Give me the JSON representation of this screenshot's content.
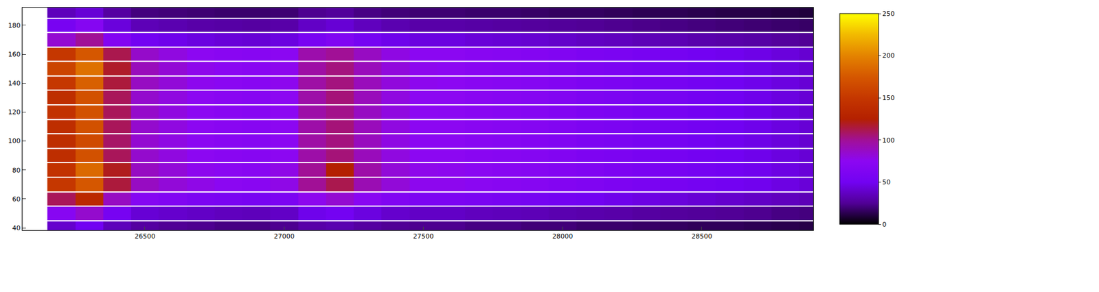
{
  "chart_data": {
    "type": "heatmap",
    "x": [
      26100,
      26200,
      26300,
      26400,
      26500,
      26600,
      26700,
      26800,
      26900,
      27000,
      27100,
      27200,
      27300,
      27400,
      27500,
      27600,
      27700,
      27800,
      27900,
      28000,
      28100,
      28200,
      28300,
      28400,
      28500,
      28600,
      28700,
      28800,
      28900
    ],
    "y": [
      40,
      50,
      60,
      70,
      80,
      90,
      100,
      110,
      120,
      130,
      140,
      150,
      160,
      170,
      180,
      190
    ],
    "cells": [
      [
        null,
        40,
        50,
        35,
        28,
        25,
        24,
        22,
        22,
        24,
        30,
        32,
        28,
        25,
        24,
        24,
        22,
        22,
        20,
        20,
        18,
        18,
        17,
        16,
        15,
        15,
        14,
        13,
        12
      ],
      [
        null,
        70,
        85,
        55,
        42,
        40,
        38,
        36,
        35,
        38,
        48,
        52,
        45,
        40,
        38,
        38,
        36,
        35,
        34,
        32,
        31,
        30,
        28,
        27,
        26,
        25,
        24,
        22,
        21
      ],
      [
        null,
        110,
        135,
        88,
        68,
        64,
        60,
        58,
        56,
        60,
        76,
        84,
        72,
        64,
        60,
        60,
        58,
        56,
        54,
        52,
        50,
        48,
        46,
        44,
        42,
        40,
        38,
        36,
        34
      ],
      [
        null,
        150,
        175,
        115,
        88,
        82,
        78,
        74,
        72,
        78,
        100,
        112,
        92,
        82,
        76,
        76,
        73,
        71,
        69,
        66,
        63,
        61,
        58,
        56,
        53,
        51,
        49,
        46,
        43
      ],
      [
        null,
        145,
        185,
        120,
        88,
        82,
        76,
        73,
        71,
        78,
        100,
        125,
        95,
        82,
        77,
        76,
        73,
        71,
        69,
        66,
        63,
        61,
        58,
        56,
        53,
        51,
        49,
        46,
        43
      ],
      [
        null,
        140,
        170,
        110,
        85,
        80,
        75,
        72,
        70,
        75,
        95,
        105,
        90,
        80,
        75,
        75,
        72,
        70,
        68,
        65,
        62,
        60,
        57,
        55,
        52,
        50,
        48,
        45,
        42
      ],
      [
        null,
        140,
        165,
        108,
        84,
        79,
        74,
        71,
        69,
        74,
        96,
        104,
        89,
        79,
        74,
        74,
        71,
        69,
        67,
        64,
        61,
        59,
        56,
        54,
        51,
        49,
        47,
        44,
        41
      ],
      [
        null,
        140,
        170,
        110,
        85,
        80,
        75,
        72,
        70,
        75,
        95,
        105,
        90,
        80,
        75,
        75,
        72,
        70,
        68,
        65,
        62,
        60,
        57,
        55,
        52,
        50,
        48,
        45,
        42
      ],
      [
        null,
        145,
        170,
        110,
        86,
        80,
        75,
        72,
        70,
        75,
        95,
        102,
        88,
        80,
        75,
        74,
        72,
        70,
        68,
        65,
        62,
        60,
        57,
        55,
        52,
        50,
        48,
        45,
        42
      ],
      [
        null,
        140,
        170,
        110,
        85,
        80,
        75,
        72,
        70,
        75,
        95,
        105,
        90,
        80,
        75,
        75,
        72,
        70,
        68,
        65,
        62,
        60,
        57,
        55,
        52,
        50,
        48,
        45,
        42
      ],
      [
        null,
        150,
        180,
        115,
        88,
        82,
        76,
        73,
        71,
        76,
        96,
        104,
        90,
        81,
        76,
        75,
        72,
        70,
        68,
        65,
        62,
        60,
        57,
        55,
        52,
        50,
        48,
        45,
        42
      ],
      [
        null,
        160,
        190,
        118,
        90,
        83,
        77,
        74,
        72,
        76,
        96,
        104,
        90,
        81,
        76,
        75,
        72,
        70,
        68,
        65,
        62,
        60,
        57,
        55,
        52,
        50,
        48,
        45,
        42
      ],
      [
        null,
        150,
        175,
        112,
        86,
        80,
        75,
        72,
        70,
        74,
        94,
        100,
        88,
        79,
        74,
        74,
        71,
        69,
        67,
        64,
        61,
        59,
        56,
        54,
        51,
        49,
        47,
        44,
        41
      ],
      [
        null,
        84,
        100,
        66,
        51,
        48,
        45,
        43,
        42,
        45,
        57,
        63,
        54,
        48,
        45,
        45,
        43,
        42,
        41,
        39,
        37,
        36,
        34,
        33,
        31,
        30,
        29,
        27,
        25
      ],
      [
        null,
        56,
        68,
        44,
        34,
        32,
        30,
        29,
        28,
        30,
        38,
        42,
        36,
        32,
        30,
        30,
        29,
        28,
        27,
        26,
        25,
        24,
        23,
        22,
        21,
        20,
        19,
        18,
        17
      ],
      [
        null,
        35,
        42,
        28,
        21,
        20,
        19,
        18,
        18,
        19,
        24,
        26,
        22,
        20,
        19,
        19,
        18,
        18,
        17,
        16,
        16,
        15,
        14,
        14,
        13,
        12,
        12,
        11,
        10
      ]
    ],
    "xlim": [
      26060,
      28900
    ],
    "ylim": [
      38.4,
      192.2
    ],
    "xticks": [
      26500,
      27000,
      27500,
      28000,
      28500
    ],
    "yticks": [
      40,
      60,
      80,
      100,
      120,
      140,
      160,
      180
    ],
    "colorbar_range": [
      0,
      250
    ],
    "colorbar_ticks": [
      0,
      50,
      100,
      150,
      200,
      250
    ]
  }
}
